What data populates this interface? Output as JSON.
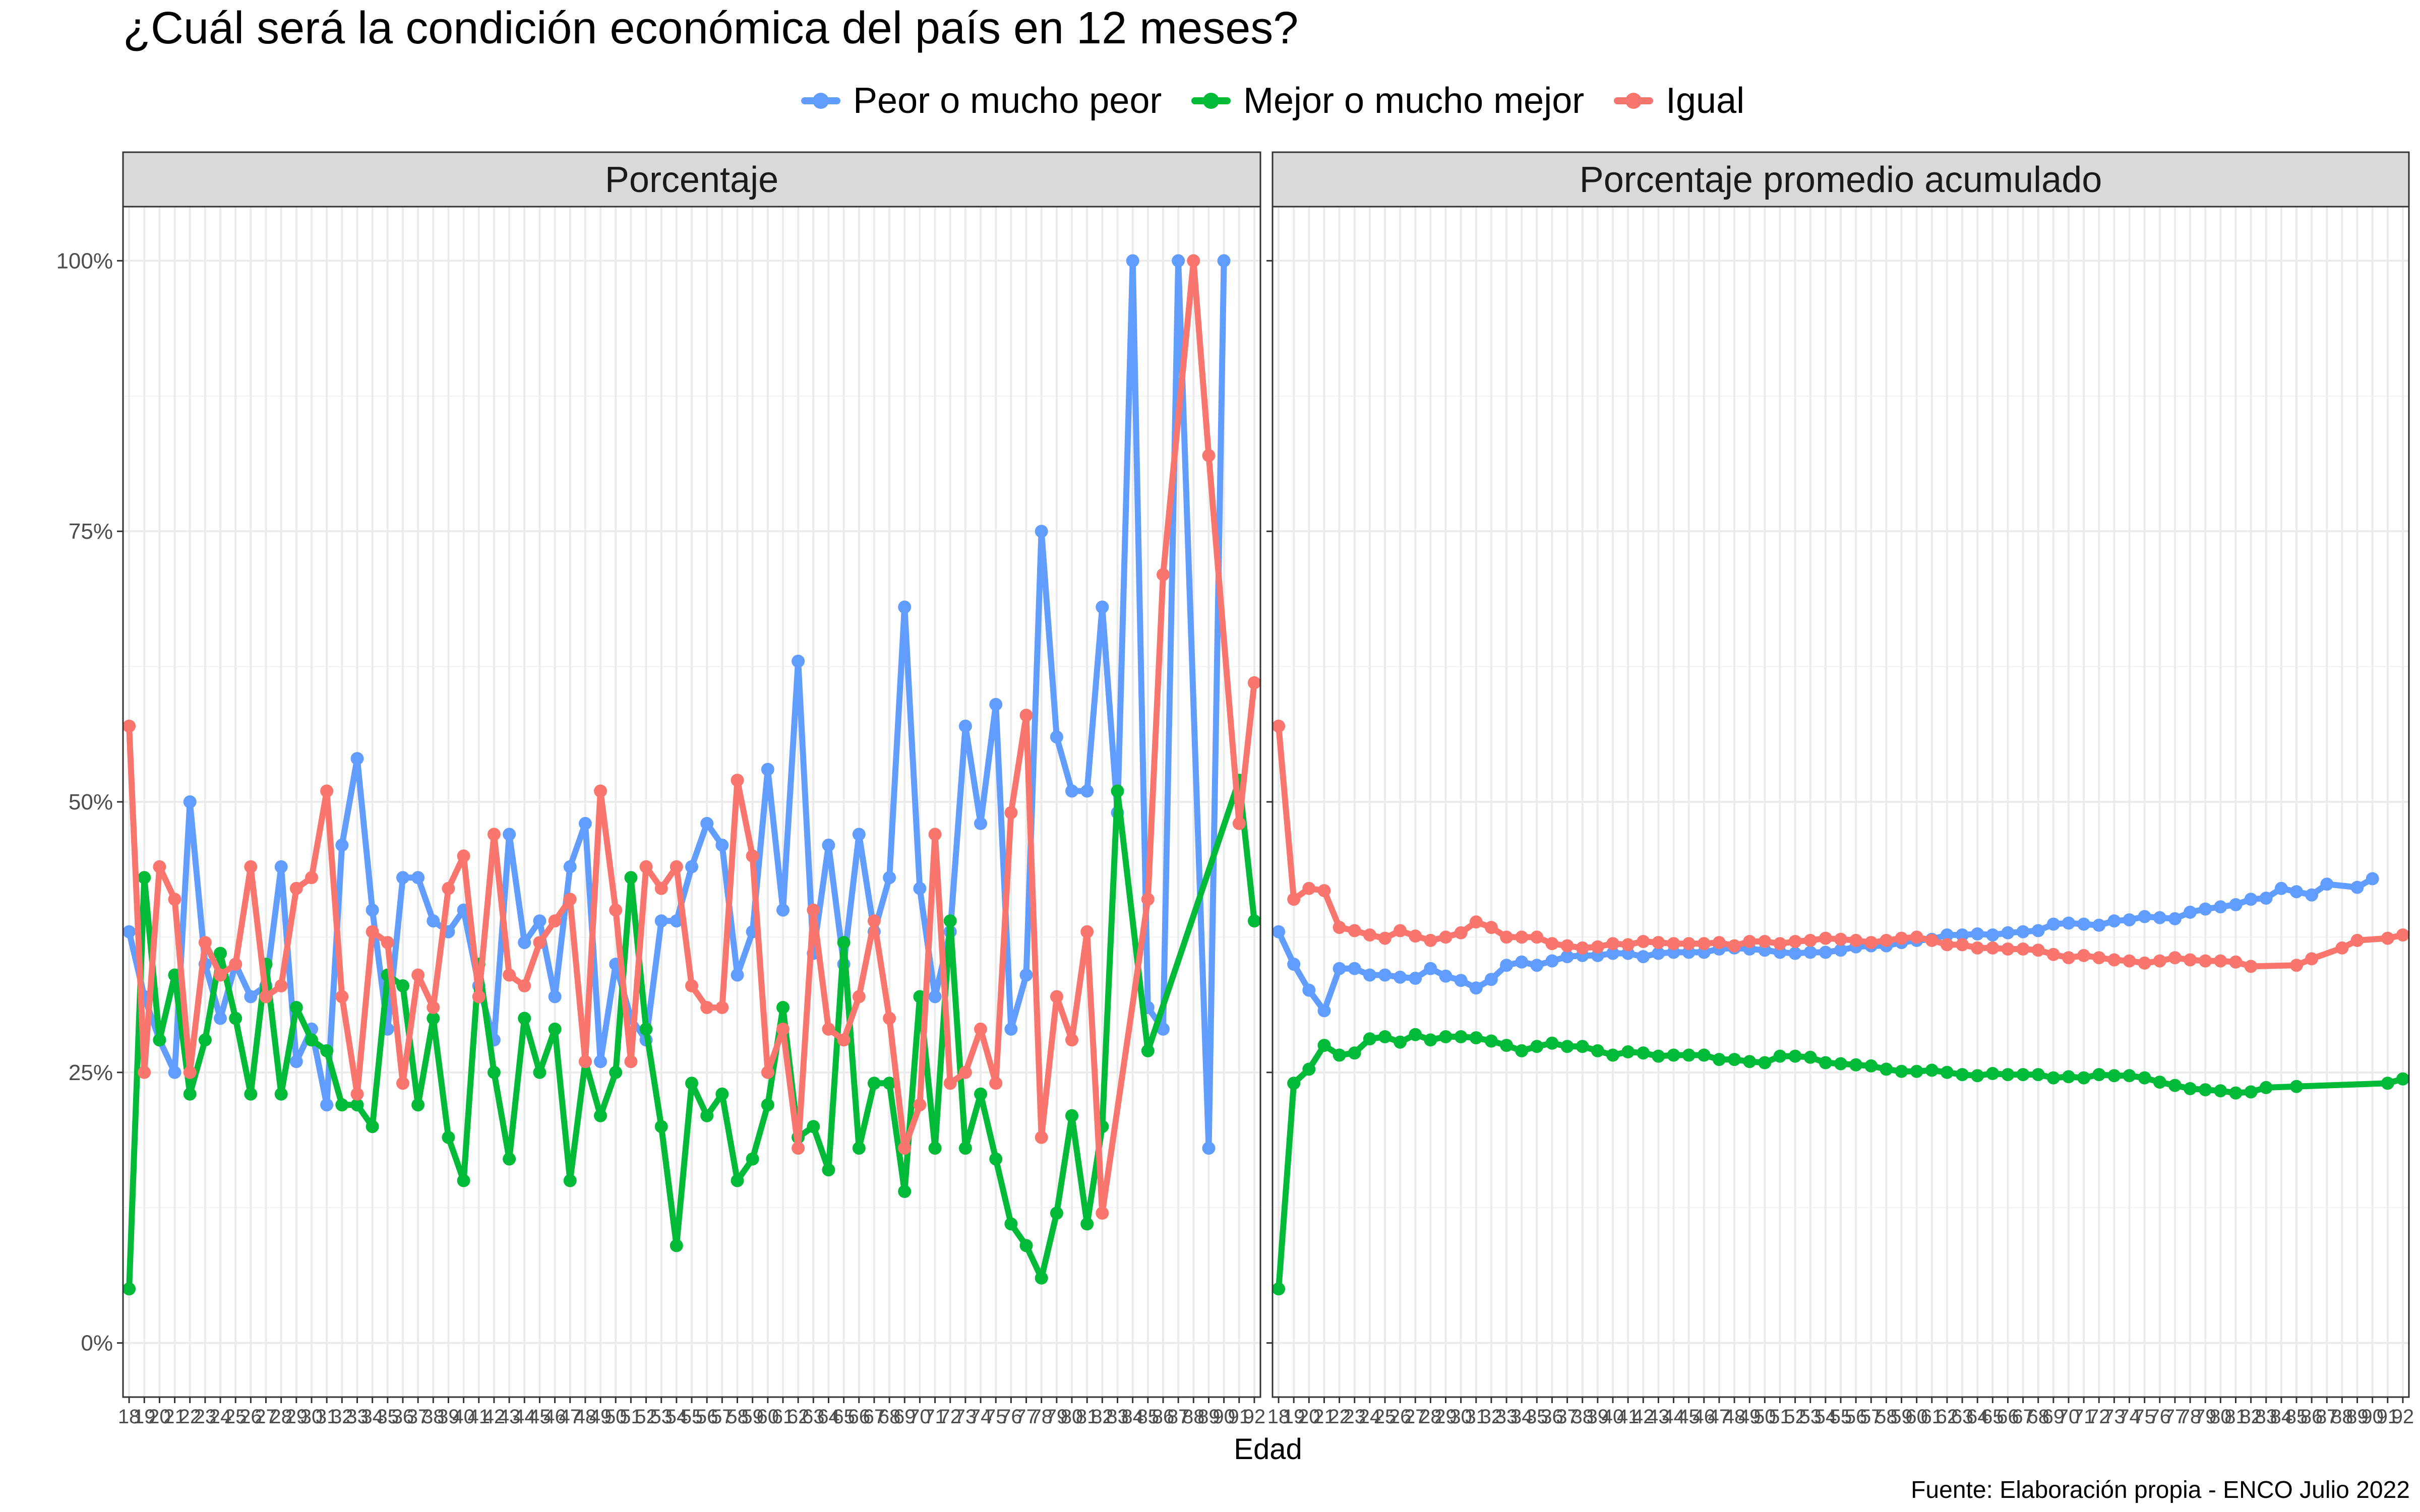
{
  "chart_data": {
    "type": "line",
    "title": "¿Cuál será la condición económica del país en 12 meses?",
    "xlabel": "Edad",
    "caption": "Fuente: Elaboración propia - ENCO Julio 2022",
    "legend_position": "top",
    "grid": true,
    "ylim": [
      -0.05,
      1.05
    ],
    "y_ticks": [
      {
        "value": 0,
        "label": "0%"
      },
      {
        "value": 0.25,
        "label": "25%"
      },
      {
        "value": 0.5,
        "label": "50%"
      },
      {
        "value": 0.75,
        "label": "75%"
      },
      {
        "value": 1,
        "label": "100%"
      }
    ],
    "panels": [
      {
        "name": "Porcentaje",
        "x": [
          18,
          19,
          20,
          21,
          22,
          23,
          24,
          25,
          26,
          27,
          28,
          29,
          30,
          31,
          32,
          33,
          34,
          35,
          36,
          37,
          38,
          39,
          40,
          41,
          42,
          43,
          44,
          45,
          46,
          47,
          48,
          49,
          50,
          51,
          52,
          53,
          54,
          55,
          56,
          57,
          58,
          59,
          60,
          61,
          62,
          63,
          64,
          65,
          66,
          67,
          68,
          69,
          70,
          71,
          72,
          73,
          74,
          75,
          76,
          77,
          78,
          79,
          80,
          81,
          82,
          83,
          84,
          85,
          86,
          87,
          88,
          89,
          90,
          91,
          92
        ],
        "series": [
          {
            "name": "Peor o mucho peor",
            "color": "#619CFF",
            "values": [
              0.38,
              0.32,
              0.28,
              0.25,
              0.5,
              0.35,
              0.3,
              0.35,
              0.32,
              0.33,
              0.44,
              0.26,
              0.29,
              0.22,
              0.46,
              0.54,
              0.4,
              0.29,
              0.43,
              0.43,
              0.39,
              0.38,
              0.4,
              0.33,
              0.28,
              0.47,
              0.37,
              0.39,
              0.32,
              0.44,
              0.48,
              0.26,
              0.35,
              0.3,
              0.28,
              0.39,
              0.39,
              0.44,
              0.48,
              0.46,
              0.34,
              0.38,
              0.53,
              0.4,
              0.63,
              0.36,
              0.46,
              0.35,
              0.47,
              0.38,
              0.43,
              0.68,
              0.42,
              0.32,
              0.38,
              0.57,
              0.48,
              0.59,
              0.29,
              0.34,
              0.75,
              0.56,
              0.51,
              0.51,
              0.68,
              0.49,
              1.0,
              0.31,
              0.29,
              1.0,
              null,
              0.18,
              1.0,
              null,
              null
            ]
          },
          {
            "name": "Mejor o mucho mejor",
            "color": "#00BA38",
            "values": [
              0.05,
              0.43,
              0.28,
              0.34,
              0.23,
              0.28,
              0.36,
              0.3,
              0.23,
              0.35,
              0.23,
              0.31,
              0.28,
              0.27,
              0.22,
              0.22,
              0.2,
              0.34,
              0.33,
              0.22,
              0.3,
              0.19,
              0.15,
              0.35,
              0.25,
              0.17,
              0.3,
              0.25,
              0.29,
              0.15,
              0.26,
              0.21,
              0.25,
              0.43,
              0.29,
              0.2,
              0.09,
              0.24,
              0.21,
              0.23,
              0.15,
              0.17,
              0.22,
              0.31,
              0.19,
              0.2,
              0.16,
              0.37,
              0.18,
              0.24,
              0.24,
              0.14,
              0.32,
              0.18,
              0.39,
              0.18,
              0.23,
              0.17,
              0.11,
              0.09,
              0.06,
              0.12,
              0.21,
              0.11,
              0.2,
              0.51,
              null,
              0.27,
              null,
              null,
              null,
              null,
              null,
              0.52,
              0.39
            ]
          },
          {
            "name": "Igual",
            "color": "#F8766D",
            "values": [
              0.57,
              0.25,
              0.44,
              0.41,
              0.25,
              0.37,
              0.34,
              0.35,
              0.44,
              0.32,
              0.33,
              0.42,
              0.43,
              0.51,
              0.32,
              0.23,
              0.38,
              0.37,
              0.24,
              0.34,
              0.31,
              0.42,
              0.45,
              0.32,
              0.47,
              0.34,
              0.33,
              0.37,
              0.39,
              0.41,
              0.26,
              0.51,
              0.4,
              0.26,
              0.44,
              0.42,
              0.44,
              0.33,
              0.31,
              0.31,
              0.52,
              0.45,
              0.25,
              0.29,
              0.18,
              0.4,
              0.29,
              0.28,
              0.32,
              0.39,
              0.3,
              0.18,
              0.22,
              0.47,
              0.24,
              0.25,
              0.29,
              0.24,
              0.49,
              0.58,
              0.19,
              0.32,
              0.28,
              0.38,
              0.12,
              null,
              null,
              0.41,
              0.71,
              null,
              1.0,
              0.82,
              null,
              0.48,
              0.61
            ]
          }
        ]
      },
      {
        "name": "Porcentaje promedio acumulado",
        "x": [
          18,
          19,
          20,
          21,
          22,
          23,
          24,
          25,
          26,
          27,
          28,
          29,
          30,
          31,
          32,
          33,
          34,
          35,
          36,
          37,
          38,
          39,
          40,
          41,
          42,
          43,
          44,
          45,
          46,
          47,
          48,
          49,
          50,
          51,
          52,
          53,
          54,
          55,
          56,
          57,
          58,
          59,
          60,
          61,
          62,
          63,
          64,
          65,
          66,
          67,
          68,
          69,
          70,
          71,
          72,
          73,
          74,
          75,
          76,
          77,
          78,
          79,
          80,
          81,
          82,
          83,
          84,
          85,
          86,
          87,
          88,
          89,
          90,
          91,
          92
        ],
        "series": [
          {
            "name": "Peor o mucho peor",
            "color": "#619CFF",
            "values": [
              0.38,
              0.35,
              0.326,
              0.307,
              0.346,
              0.346,
              0.34,
              0.34,
              0.338,
              0.337,
              0.346,
              0.339,
              0.335,
              0.328,
              0.336,
              0.349,
              0.352,
              0.349,
              0.353,
              0.357,
              0.358,
              0.358,
              0.36,
              0.36,
              0.357,
              0.36,
              0.361,
              0.361,
              0.361,
              0.364,
              0.365,
              0.364,
              0.363,
              0.361,
              0.36,
              0.361,
              0.361,
              0.363,
              0.366,
              0.367,
              0.367,
              0.37,
              0.372,
              0.373,
              0.377,
              0.377,
              0.378,
              0.377,
              0.379,
              0.38,
              0.381,
              0.387,
              0.388,
              0.387,
              0.386,
              0.39,
              0.391,
              0.394,
              0.393,
              0.392,
              0.398,
              0.401,
              0.403,
              0.405,
              0.41,
              0.411,
              0.42,
              0.417,
              0.414,
              0.424,
              null,
              0.421,
              0.429,
              null,
              null
            ]
          },
          {
            "name": "Mejor o mucho mejor",
            "color": "#00BA38",
            "values": [
              0.05,
              0.24,
              0.253,
              0.275,
              0.266,
              0.268,
              0.281,
              0.283,
              0.278,
              0.285,
              0.28,
              0.283,
              0.283,
              0.282,
              0.279,
              0.275,
              0.27,
              0.274,
              0.277,
              0.274,
              0.274,
              0.27,
              0.266,
              0.269,
              0.268,
              0.265,
              0.266,
              0.266,
              0.266,
              0.262,
              0.262,
              0.26,
              0.259,
              0.265,
              0.265,
              0.264,
              0.259,
              0.258,
              0.257,
              0.256,
              0.253,
              0.251,
              0.251,
              0.252,
              0.25,
              0.248,
              0.247,
              0.249,
              0.248,
              0.248,
              0.248,
              0.245,
              0.246,
              0.245,
              0.248,
              0.247,
              0.247,
              0.245,
              0.241,
              0.238,
              0.235,
              0.234,
              0.233,
              0.231,
              0.232,
              0.236,
              null,
              0.237,
              null,
              null,
              null,
              null,
              null,
              0.24,
              0.244
            ]
          },
          {
            "name": "Igual",
            "color": "#F8766D",
            "values": [
              0.57,
              0.41,
              0.42,
              0.418,
              0.384,
              0.381,
              0.377,
              0.374,
              0.381,
              0.376,
              0.372,
              0.375,
              0.379,
              0.389,
              0.384,
              0.375,
              0.375,
              0.375,
              0.369,
              0.367,
              0.365,
              0.366,
              0.369,
              0.368,
              0.371,
              0.37,
              0.369,
              0.369,
              0.369,
              0.37,
              0.367,
              0.371,
              0.371,
              0.369,
              0.371,
              0.372,
              0.374,
              0.373,
              0.372,
              0.37,
              0.372,
              0.374,
              0.375,
              0.372,
              0.368,
              0.368,
              0.365,
              0.365,
              0.364,
              0.364,
              0.363,
              0.359,
              0.356,
              0.358,
              0.356,
              0.354,
              0.353,
              0.351,
              0.353,
              0.356,
              0.354,
              0.353,
              0.353,
              0.352,
              0.348,
              null,
              null,
              0.349,
              0.355,
              null,
              0.365,
              0.372,
              null,
              0.374,
              0.377
            ]
          }
        ]
      }
    ],
    "x_ticks": [
      "18",
      "19",
      "20",
      "21",
      "22",
      "23",
      "24",
      "25",
      "26",
      "27",
      "28",
      "29",
      "30",
      "31",
      "32",
      "33",
      "34",
      "35",
      "36",
      "37",
      "38",
      "39",
      "40",
      "41",
      "42",
      "43",
      "44",
      "45",
      "46",
      "47",
      "48",
      "49",
      "50",
      "51",
      "52",
      "53",
      "54",
      "55",
      "56",
      "57",
      "58",
      "59",
      "60",
      "61",
      "62",
      "63",
      "64",
      "65",
      "66",
      "67",
      "68",
      "69",
      "70",
      "71",
      "72",
      "73",
      "74",
      "75",
      "76",
      "77",
      "78",
      "79",
      "80",
      "81",
      "82",
      "83",
      "84",
      "85",
      "86",
      "87",
      "88",
      "89",
      "90",
      "91",
      "92"
    ]
  }
}
